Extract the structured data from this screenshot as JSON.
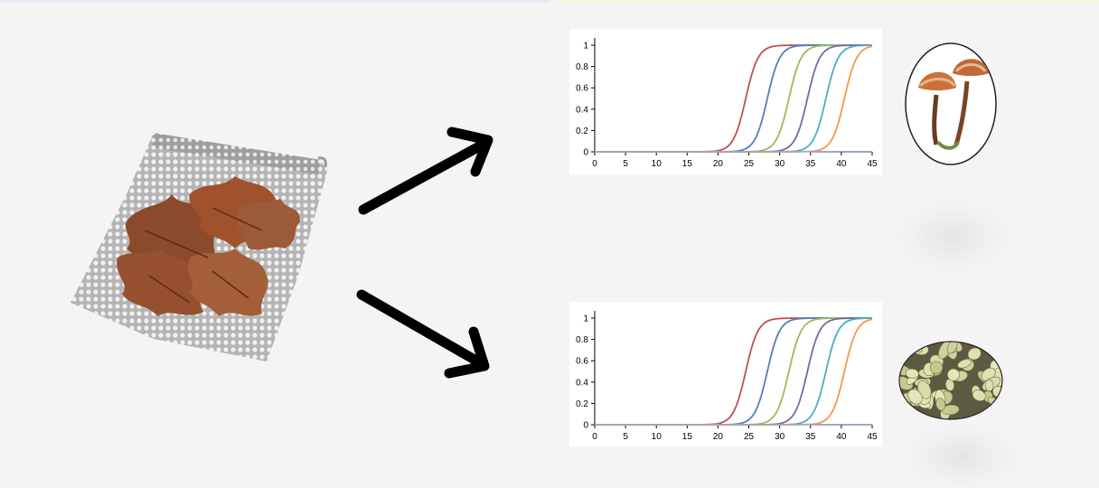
{
  "colors": {
    "background": "#f4f4f4",
    "arrow": "#000000",
    "series": [
      "#c0504d",
      "#4f81bd",
      "#9bbb59",
      "#8064a2",
      "#4bacc6",
      "#f79646"
    ]
  },
  "illustrations": {
    "left": "mesh-bag-with-oak-leaves",
    "top_right": "mushroom-pair",
    "bottom_right": "microscopic-spores"
  },
  "chart_data": [
    {
      "type": "line",
      "title": "",
      "xlabel": "",
      "ylabel": "",
      "xlim": [
        0,
        45
      ],
      "ylim": [
        0,
        1
      ],
      "xticks": [
        0,
        5,
        10,
        15,
        20,
        25,
        30,
        35,
        40,
        45
      ],
      "yticks": [
        0,
        0.2,
        0.4,
        0.6,
        0.8,
        1
      ],
      "ytick_labels": [
        "0",
        "0.2",
        "0.4",
        "0.6",
        "0.8",
        "1"
      ],
      "grid": false,
      "legend": "none",
      "series": [
        {
          "color": "#c0504d",
          "midpoint": 24.5,
          "steepness": 1.0
        },
        {
          "color": "#4f81bd",
          "midpoint": 28.0,
          "steepness": 1.0
        },
        {
          "color": "#9bbb59",
          "midpoint": 31.5,
          "steepness": 1.0
        },
        {
          "color": "#8064a2",
          "midpoint": 34.5,
          "steepness": 1.0
        },
        {
          "color": "#4bacc6",
          "midpoint": 37.5,
          "steepness": 1.0
        },
        {
          "color": "#f79646",
          "midpoint": 40.5,
          "steepness": 1.0
        },
        {
          "color": "#8faadc",
          "midpoint": null,
          "steepness": 0
        }
      ]
    },
    {
      "type": "line",
      "title": "",
      "xlabel": "",
      "ylabel": "",
      "xlim": [
        0,
        45
      ],
      "ylim": [
        0,
        1
      ],
      "xticks": [
        0,
        5,
        10,
        15,
        20,
        25,
        30,
        35,
        40,
        45
      ],
      "yticks": [
        0,
        0.2,
        0.4,
        0.6,
        0.8,
        1
      ],
      "ytick_labels": [
        "0",
        "0.2",
        "0.4",
        "0.6",
        "0.8",
        "1"
      ],
      "grid": false,
      "legend": "none",
      "series": [
        {
          "color": "#c0504d",
          "midpoint": 24.5,
          "steepness": 1.0
        },
        {
          "color": "#4f81bd",
          "midpoint": 28.0,
          "steepness": 1.0
        },
        {
          "color": "#9bbb59",
          "midpoint": 31.5,
          "steepness": 1.0
        },
        {
          "color": "#8064a2",
          "midpoint": 34.5,
          "steepness": 1.0
        },
        {
          "color": "#4bacc6",
          "midpoint": 37.5,
          "steepness": 1.0
        },
        {
          "color": "#f79646",
          "midpoint": 40.5,
          "steepness": 1.0
        },
        {
          "color": "#8faadc",
          "midpoint": null,
          "steepness": 0
        }
      ]
    }
  ]
}
